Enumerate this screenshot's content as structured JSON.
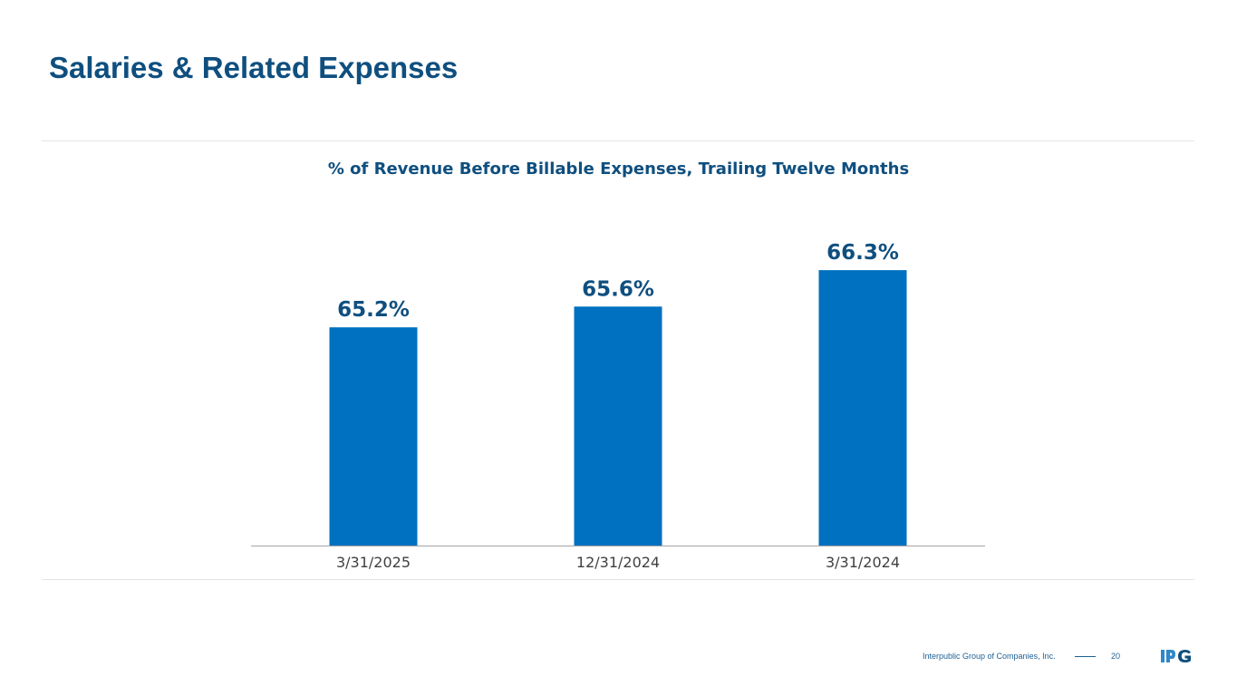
{
  "slide": {
    "title": "Salaries & Related Expenses",
    "footer_company": "Interpublic Group of Companies, Inc.",
    "page_number": "20",
    "logo_text": "IPG"
  },
  "colors": {
    "title": "#0f4f7f",
    "bar": "#0070c0",
    "axis": "#a6a6a6",
    "tick_label": "#404040"
  },
  "chart_data": {
    "type": "bar",
    "title": "% of Revenue Before Billable Expenses, Trailing Twelve Months",
    "categories": [
      "3/31/2025",
      "12/31/2024",
      "3/31/2024"
    ],
    "values": [
      65.2,
      65.6,
      66.3
    ],
    "value_labels": [
      "65.2%",
      "65.6%",
      "66.3%"
    ],
    "unit": "%",
    "ylim": [
      61.0,
      67.0
    ],
    "xlabel": "",
    "ylabel": "",
    "grid": false,
    "legend": "none"
  }
}
